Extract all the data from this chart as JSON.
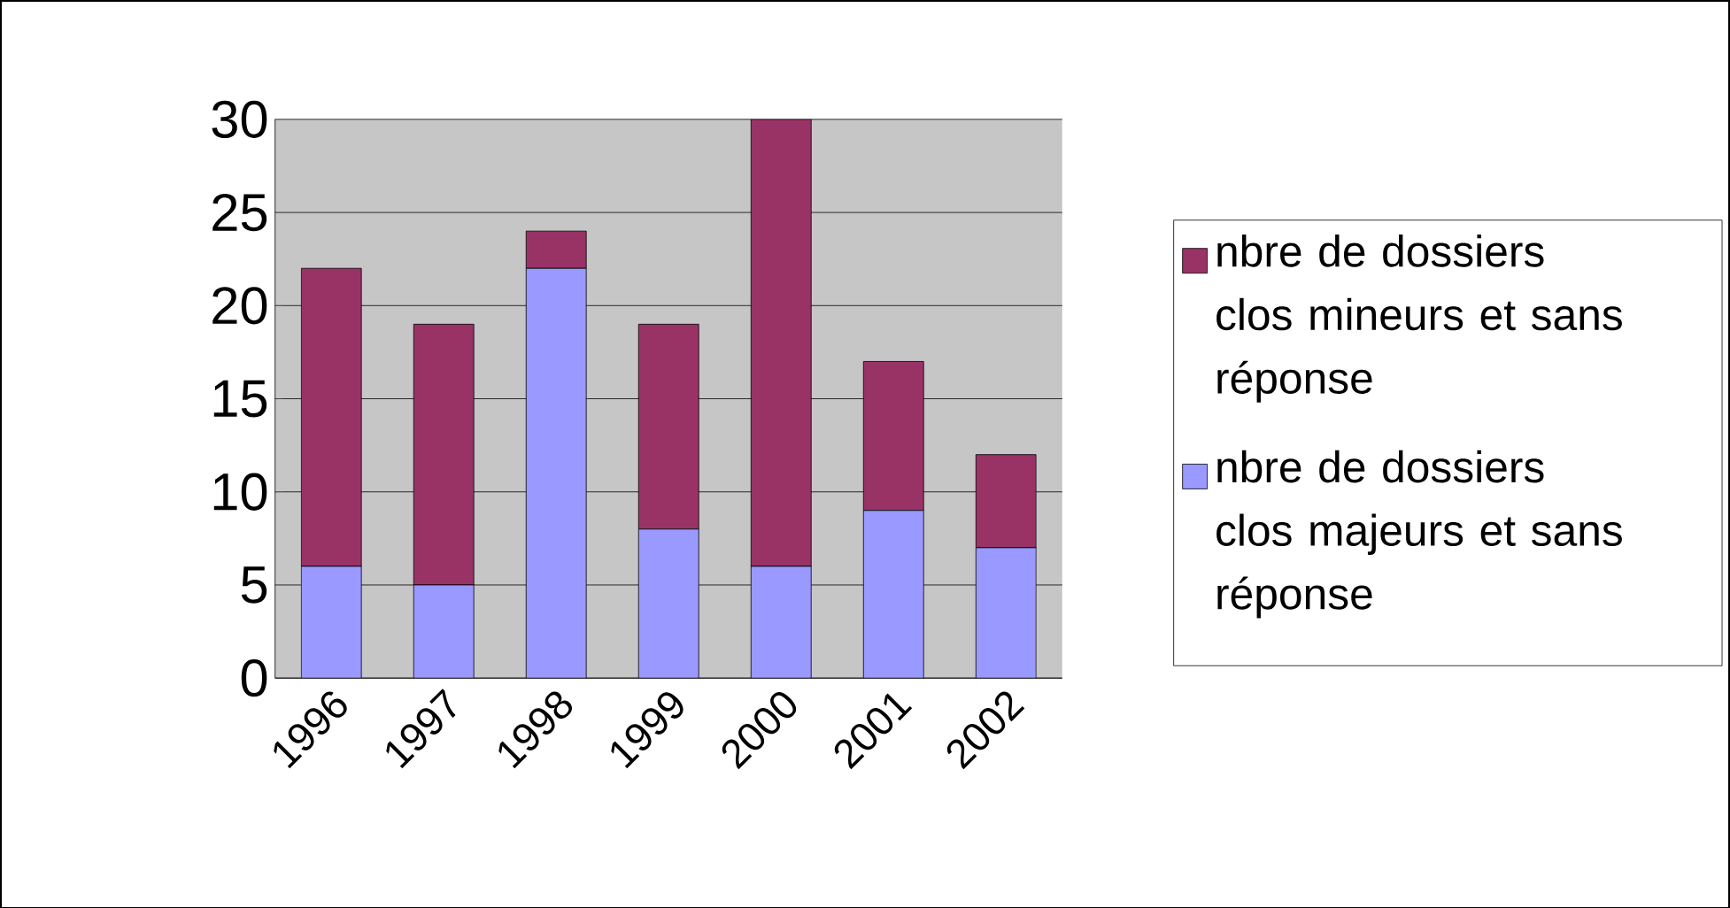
{
  "chart_data": {
    "type": "bar",
    "stacked": true,
    "categories": [
      "1996",
      "1997",
      "1998",
      "1999",
      "2000",
      "2001",
      "2002"
    ],
    "series": [
      {
        "name": "nbre de dossiers clos majeurs et sans réponse",
        "color": "#9999ff",
        "values": [
          6,
          5,
          22,
          8,
          6,
          9,
          7
        ]
      },
      {
        "name": "nbre de dossiers clos mineurs et sans réponse",
        "color": "#993366",
        "values": [
          16,
          14,
          2,
          11,
          24,
          8,
          5
        ]
      }
    ],
    "ylim": [
      0,
      30
    ],
    "yticks": [
      0,
      5,
      10,
      15,
      20,
      25,
      30
    ],
    "grid": "y",
    "legend": "right"
  }
}
